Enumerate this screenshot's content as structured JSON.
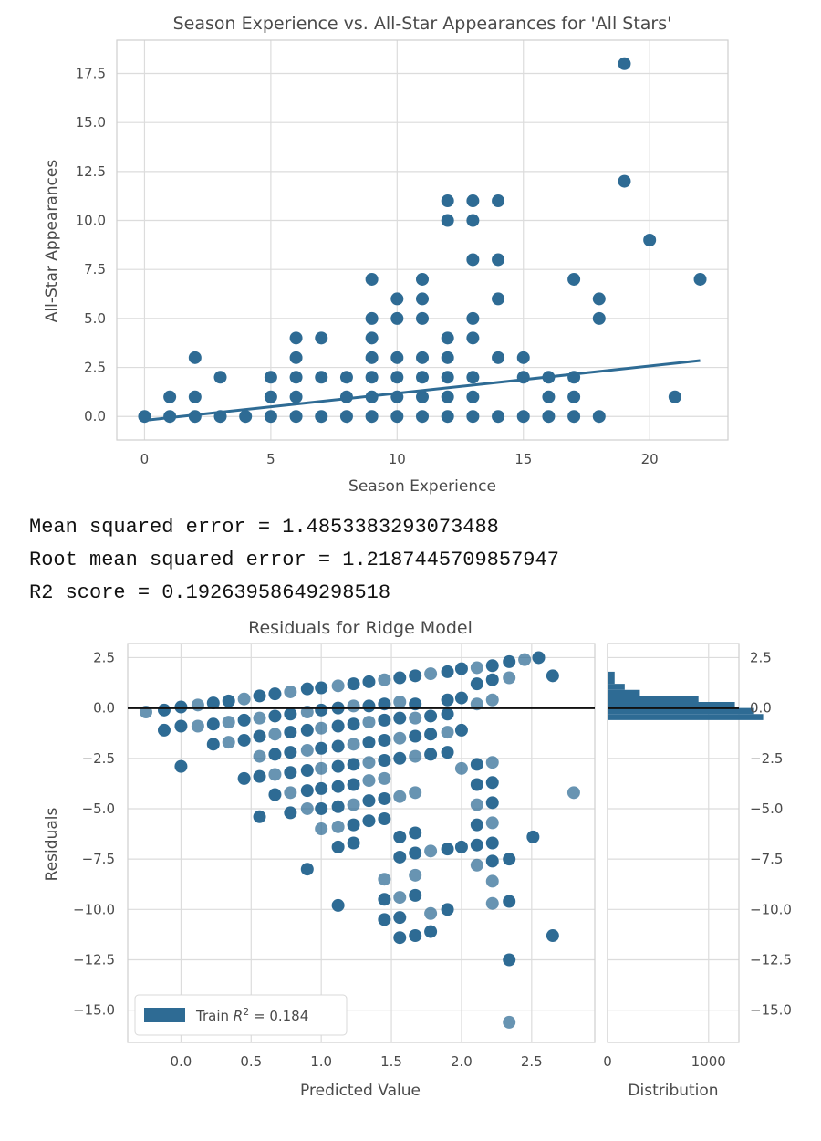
{
  "chart_data": [
    {
      "type": "scatter",
      "title": "Season Experience vs. All-Star Appearances for 'All Stars'",
      "xlabel": "Season Experience",
      "ylabel": "All-Star Appearances",
      "xlim": [
        -1.1,
        23.1
      ],
      "ylim": [
        -1.2,
        19.2
      ],
      "x_ticks": [
        0,
        5,
        10,
        15,
        20
      ],
      "y_ticks": [
        0.0,
        2.5,
        5.0,
        7.5,
        10.0,
        12.5,
        15.0,
        17.5
      ],
      "grid": true,
      "colors": {
        "points": "#2e6b94",
        "line": "#2e6b94",
        "grid": "#dcdcdc"
      },
      "points": [
        [
          0,
          0
        ],
        [
          1,
          0
        ],
        [
          1,
          1
        ],
        [
          2,
          0
        ],
        [
          2,
          1
        ],
        [
          2,
          3
        ],
        [
          3,
          0
        ],
        [
          3,
          2
        ],
        [
          4,
          0
        ],
        [
          5,
          0
        ],
        [
          5,
          1
        ],
        [
          5,
          2
        ],
        [
          6,
          0
        ],
        [
          6,
          1
        ],
        [
          6,
          2
        ],
        [
          6,
          3
        ],
        [
          6,
          4
        ],
        [
          7,
          0
        ],
        [
          7,
          2
        ],
        [
          7,
          4
        ],
        [
          8,
          0
        ],
        [
          8,
          1
        ],
        [
          8,
          2
        ],
        [
          9,
          0
        ],
        [
          9,
          1
        ],
        [
          9,
          2
        ],
        [
          9,
          3
        ],
        [
          9,
          4
        ],
        [
          9,
          5
        ],
        [
          9,
          7
        ],
        [
          10,
          0
        ],
        [
          10,
          1
        ],
        [
          10,
          2
        ],
        [
          10,
          3
        ],
        [
          10,
          5
        ],
        [
          10,
          6
        ],
        [
          11,
          0
        ],
        [
          11,
          1
        ],
        [
          11,
          2
        ],
        [
          11,
          3
        ],
        [
          11,
          5
        ],
        [
          11,
          6
        ],
        [
          11,
          7
        ],
        [
          12,
          0
        ],
        [
          12,
          1
        ],
        [
          12,
          2
        ],
        [
          12,
          3
        ],
        [
          12,
          4
        ],
        [
          12,
          10
        ],
        [
          12,
          11
        ],
        [
          13,
          0
        ],
        [
          13,
          1
        ],
        [
          13,
          2
        ],
        [
          13,
          4
        ],
        [
          13,
          5
        ],
        [
          13,
          8
        ],
        [
          13,
          10
        ],
        [
          13,
          11
        ],
        [
          14,
          0
        ],
        [
          14,
          3
        ],
        [
          14,
          6
        ],
        [
          14,
          8
        ],
        [
          14,
          11
        ],
        [
          15,
          0
        ],
        [
          15,
          2
        ],
        [
          15,
          3
        ],
        [
          16,
          0
        ],
        [
          16,
          1
        ],
        [
          16,
          2
        ],
        [
          17,
          0
        ],
        [
          17,
          1
        ],
        [
          17,
          2
        ],
        [
          17,
          7
        ],
        [
          18,
          0
        ],
        [
          18,
          5
        ],
        [
          18,
          6
        ],
        [
          19,
          12
        ],
        [
          19,
          18
        ],
        [
          20,
          9
        ],
        [
          21,
          1
        ],
        [
          22,
          7
        ]
      ],
      "fit_line": {
        "x": [
          0,
          22
        ],
        "y": [
          -0.2,
          2.85
        ]
      }
    },
    {
      "type": "scatter",
      "title": "Residuals for Ridge Model",
      "xlabel": "Predicted Value",
      "ylabel": "Residuals",
      "xlim": [
        -0.38,
        2.95
      ],
      "ylim": [
        -16.6,
        3.2
      ],
      "x_ticks": [
        0.0,
        0.5,
        1.0,
        1.5,
        2.0,
        2.5
      ],
      "y_ticks": [
        2.5,
        0.0,
        -2.5,
        -5.0,
        -7.5,
        -10.0,
        -12.5,
        -15.0
      ],
      "grid": true,
      "legend": {
        "position": "lower-left",
        "label_prefix": "Train",
        "label_value": "0.184"
      },
      "colors": {
        "points": "#2e6b94",
        "zero_line": "#111111",
        "grid": "#dcdcdc"
      },
      "series_train": [
        [
          -0.25,
          -0.2
        ],
        [
          -0.12,
          -0.1
        ],
        [
          0.0,
          0.05
        ],
        [
          0.12,
          0.15
        ],
        [
          0.23,
          0.25
        ],
        [
          0.34,
          0.35
        ],
        [
          0.45,
          0.45
        ],
        [
          0.56,
          0.6
        ],
        [
          0.67,
          0.7
        ],
        [
          0.78,
          0.8
        ],
        [
          0.9,
          0.95
        ],
        [
          1.0,
          1.0
        ],
        [
          1.12,
          1.1
        ],
        [
          1.23,
          1.2
        ],
        [
          1.34,
          1.3
        ],
        [
          1.45,
          1.4
        ],
        [
          1.56,
          1.5
        ],
        [
          1.67,
          1.6
        ],
        [
          1.78,
          1.7
        ],
        [
          1.9,
          1.8
        ],
        [
          2.0,
          1.95
        ],
        [
          2.11,
          2.0
        ],
        [
          2.22,
          2.1
        ],
        [
          2.34,
          2.3
        ],
        [
          2.45,
          2.4
        ],
        [
          2.55,
          2.5
        ],
        [
          2.65,
          1.6
        ],
        [
          2.34,
          1.5
        ],
        [
          2.22,
          1.4
        ],
        [
          2.11,
          1.2
        ],
        [
          2.22,
          0.4
        ],
        [
          2.0,
          0.5
        ],
        [
          1.9,
          0.4
        ],
        [
          2.11,
          0.2
        ],
        [
          -0.12,
          -1.1
        ],
        [
          0.0,
          -0.9
        ],
        [
          0.12,
          -0.9
        ],
        [
          0.0,
          -2.9
        ],
        [
          0.23,
          -0.8
        ],
        [
          0.34,
          -0.7
        ],
        [
          0.45,
          -0.6
        ],
        [
          0.23,
          -1.8
        ],
        [
          0.34,
          -1.7
        ],
        [
          0.45,
          -1.6
        ],
        [
          0.45,
          -3.5
        ],
        [
          0.56,
          -0.5
        ],
        [
          0.67,
          -0.4
        ],
        [
          0.78,
          -0.3
        ],
        [
          0.9,
          -0.2
        ],
        [
          1.0,
          -0.1
        ],
        [
          1.12,
          0.0
        ],
        [
          1.23,
          0.1
        ],
        [
          1.34,
          0.1
        ],
        [
          1.45,
          0.2
        ],
        [
          1.56,
          0.3
        ],
        [
          1.67,
          0.2
        ],
        [
          0.56,
          -1.4
        ],
        [
          0.67,
          -1.3
        ],
        [
          0.78,
          -1.2
        ],
        [
          0.9,
          -1.1
        ],
        [
          1.0,
          -1.0
        ],
        [
          1.12,
          -0.9
        ],
        [
          1.23,
          -0.8
        ],
        [
          1.34,
          -0.7
        ],
        [
          1.45,
          -0.6
        ],
        [
          1.56,
          -0.5
        ],
        [
          1.67,
          -0.5
        ],
        [
          1.78,
          -0.4
        ],
        [
          1.9,
          -0.3
        ],
        [
          0.56,
          -2.4
        ],
        [
          0.67,
          -2.3
        ],
        [
          0.78,
          -2.2
        ],
        [
          0.9,
          -2.1
        ],
        [
          1.0,
          -2.0
        ],
        [
          1.12,
          -1.9
        ],
        [
          1.23,
          -1.8
        ],
        [
          1.34,
          -1.7
        ],
        [
          1.45,
          -1.6
        ],
        [
          1.56,
          -1.5
        ],
        [
          1.67,
          -1.4
        ],
        [
          1.78,
          -1.3
        ],
        [
          1.9,
          -1.2
        ],
        [
          2.0,
          -1.1
        ],
        [
          0.56,
          -3.4
        ],
        [
          0.67,
          -3.3
        ],
        [
          0.78,
          -3.2
        ],
        [
          0.9,
          -3.1
        ],
        [
          1.0,
          -3.0
        ],
        [
          1.12,
          -2.9
        ],
        [
          1.23,
          -2.8
        ],
        [
          1.34,
          -2.7
        ],
        [
          1.45,
          -2.6
        ],
        [
          1.56,
          -2.5
        ],
        [
          1.67,
          -2.4
        ],
        [
          1.78,
          -2.3
        ],
        [
          1.9,
          -2.2
        ],
        [
          2.0,
          -3.0
        ],
        [
          0.56,
          -5.4
        ],
        [
          0.67,
          -4.3
        ],
        [
          0.78,
          -4.2
        ],
        [
          0.78,
          -5.2
        ],
        [
          0.9,
          -4.1
        ],
        [
          0.9,
          -5.0
        ],
        [
          1.0,
          -4.0
        ],
        [
          1.0,
          -5.0
        ],
        [
          1.0,
          -6.0
        ],
        [
          1.12,
          -3.9
        ],
        [
          1.12,
          -4.9
        ],
        [
          1.12,
          -5.9
        ],
        [
          1.12,
          -6.9
        ],
        [
          1.23,
          -3.8
        ],
        [
          1.23,
          -4.8
        ],
        [
          1.23,
          -5.8
        ],
        [
          1.23,
          -6.7
        ],
        [
          1.34,
          -3.6
        ],
        [
          1.34,
          -4.6
        ],
        [
          1.34,
          -5.6
        ],
        [
          1.45,
          -3.5
        ],
        [
          1.45,
          -4.5
        ],
        [
          1.45,
          -5.5
        ],
        [
          1.56,
          -4.4
        ],
        [
          1.56,
          -6.4
        ],
        [
          1.56,
          -7.4
        ],
        [
          1.67,
          -4.2
        ],
        [
          1.67,
          -6.2
        ],
        [
          1.67,
          -7.2
        ],
        [
          1.78,
          -7.1
        ],
        [
          1.9,
          -7.0
        ],
        [
          2.0,
          -6.9
        ],
        [
          2.11,
          -7.8
        ],
        [
          2.11,
          -2.8
        ],
        [
          2.11,
          -3.8
        ],
        [
          2.11,
          -4.8
        ],
        [
          2.11,
          -5.8
        ],
        [
          2.11,
          -6.8
        ],
        [
          2.22,
          -2.7
        ],
        [
          2.22,
          -3.7
        ],
        [
          2.22,
          -4.7
        ],
        [
          2.22,
          -5.7
        ],
        [
          2.22,
          -6.7
        ],
        [
          2.22,
          -7.6
        ],
        [
          2.22,
          -8.6
        ],
        [
          2.34,
          -7.5
        ],
        [
          2.51,
          -6.4
        ],
        [
          2.8,
          -4.2
        ],
        [
          0.9,
          -8.0
        ],
        [
          1.12,
          -9.8
        ],
        [
          1.45,
          -8.5
        ],
        [
          1.45,
          -9.5
        ],
        [
          1.45,
          -10.5
        ],
        [
          1.56,
          -9.4
        ],
        [
          1.56,
          -10.4
        ],
        [
          1.56,
          -11.4
        ],
        [
          1.67,
          -8.3
        ],
        [
          1.67,
          -9.3
        ],
        [
          1.67,
          -11.3
        ],
        [
          1.78,
          -10.2
        ],
        [
          1.78,
          -11.1
        ],
        [
          1.9,
          -10.0
        ],
        [
          2.22,
          -9.7
        ],
        [
          2.34,
          -9.6
        ],
        [
          2.34,
          -12.5
        ],
        [
          2.34,
          -15.6
        ],
        [
          2.65,
          -11.3
        ]
      ],
      "histogram": {
        "xlim": [
          0,
          1300
        ],
        "x_ticks": [
          0,
          1000
        ],
        "xlabel": "Distribution",
        "bins": [
          {
            "y0": 1.8,
            "y1": 1.2,
            "count": 70
          },
          {
            "y0": 1.2,
            "y1": 0.9,
            "count": 170
          },
          {
            "y0": 0.9,
            "y1": 0.6,
            "count": 320
          },
          {
            "y0": 0.6,
            "y1": 0.3,
            "count": 900
          },
          {
            "y0": 0.3,
            "y1": 0.0,
            "count": 1260
          },
          {
            "y0": 0.0,
            "y1": -0.3,
            "count": 1450
          },
          {
            "y0": -0.3,
            "y1": -0.6,
            "count": 1540
          }
        ]
      }
    }
  ],
  "metrics": {
    "line1": "Mean squared error = 1.4853383293073488",
    "line2": "Root mean squared error = 1.2187445709857947",
    "line3": "R2 score = 0.19263958649298518"
  }
}
